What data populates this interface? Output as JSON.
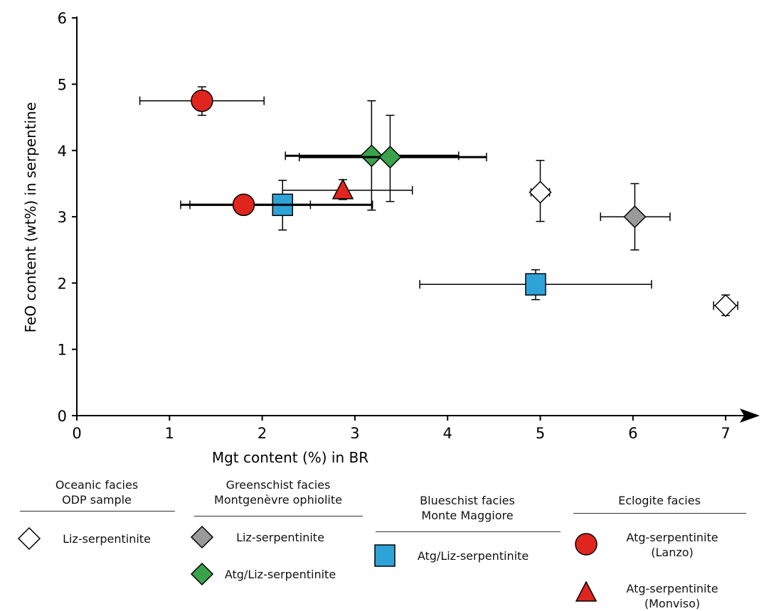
{
  "chart_data": {
    "type": "scatter",
    "xlabel": "Mgt content (%) in BR",
    "ylabel": "FeO content (wt%) in serpentine",
    "xlim": [
      0,
      7.3
    ],
    "ylim": [
      0,
      6
    ],
    "xticks": [
      "0",
      "1",
      "2",
      "3",
      "4",
      "5",
      "6",
      "7"
    ],
    "yticks": [
      "0",
      "1",
      "2",
      "3",
      "4",
      "5",
      "6"
    ],
    "grid": false,
    "series": [
      {
        "name": "Liz-serpentinite",
        "group": "Oceanic facies ODP sample",
        "marker": "diamond",
        "color": "#ffffff",
        "points": [
          {
            "x": 5.0,
            "y": 3.37,
            "xerr": [
              4.9,
              5.1
            ],
            "yerr": [
              2.93,
              3.85
            ],
            "thick": false
          },
          {
            "x": 7.0,
            "y": 1.66,
            "xerr": [
              6.87,
              7.13
            ],
            "yerr": [
              1.51,
              1.82
            ],
            "thick": false
          }
        ]
      },
      {
        "name": "Liz-serpentinite",
        "group": "Greenschist facies Montgenèvre ophiolite",
        "marker": "diamond",
        "color": "#9a9a9a",
        "points": [
          {
            "x": 6.02,
            "y": 3.0,
            "xerr": [
              5.65,
              6.4
            ],
            "yerr": [
              2.5,
              3.5
            ],
            "thick": false
          }
        ]
      },
      {
        "name": "Atg/Liz-serpentinite",
        "group": "Greenschist facies Montgenèvre ophiolite",
        "marker": "diamond",
        "color": "#3aa24b",
        "points": [
          {
            "x": 3.18,
            "y": 3.92,
            "xerr": [
              2.25,
              4.12
            ],
            "yerr": [
              3.1,
              4.75
            ],
            "thick": true
          },
          {
            "x": 3.38,
            "y": 3.9,
            "xerr": [
              2.4,
              4.42
            ],
            "yerr": [
              3.23,
              4.53
            ],
            "thick": true
          }
        ]
      },
      {
        "name": "Atg/Liz-serpentinite",
        "group": "Blueschist facies Monte Maggiore",
        "marker": "square",
        "color": "#2ea3d8",
        "points": [
          {
            "x": 2.22,
            "y": 3.18,
            "xerr": [
              1.22,
              3.19
            ],
            "yerr": [
              2.8,
              3.55
            ],
            "thick": true
          },
          {
            "x": 4.95,
            "y": 1.98,
            "xerr": [
              3.7,
              6.2
            ],
            "yerr": [
              1.75,
              2.2
            ],
            "thick": false
          }
        ]
      },
      {
        "name": "Atg-serpentinite (Lanzo)",
        "group": "Eclogite facies",
        "marker": "circle",
        "color": "#e0251f",
        "points": [
          {
            "x": 1.35,
            "y": 4.75,
            "xerr": [
              0.68,
              2.02
            ],
            "yerr": [
              4.53,
              4.96
            ],
            "thick": false
          },
          {
            "x": 1.8,
            "y": 3.18,
            "xerr": [
              1.12,
              2.52
            ],
            "yerr": null,
            "thick": true
          }
        ]
      },
      {
        "name": "Atg-serpentinite (Monviso)",
        "group": "Eclogite facies",
        "marker": "triangle",
        "color": "#e0251f",
        "points": [
          {
            "x": 2.87,
            "y": 3.4,
            "xerr": [
              2.22,
              3.62
            ],
            "yerr": [
              3.26,
              3.56
            ],
            "thick": false
          }
        ]
      }
    ],
    "legend": {
      "placement": "bottom",
      "groups": [
        {
          "title": "Oceanic facies\nODP sample",
          "items": [
            {
              "label": "Liz-serpentinite",
              "marker": "diamond",
              "color": "#ffffff"
            }
          ]
        },
        {
          "title": "Greenschist facies\nMontgenèvre ophiolite",
          "items": [
            {
              "label": "Liz-serpentinite",
              "marker": "diamond",
              "color": "#9a9a9a"
            },
            {
              "label": "Atg/Liz-serpentinite",
              "marker": "diamond",
              "color": "#3aa24b"
            }
          ]
        },
        {
          "title": "Blueschist facies\nMonte Maggiore",
          "items": [
            {
              "label": "Atg/Liz-serpentinite",
              "marker": "square",
              "color": "#2ea3d8"
            }
          ]
        },
        {
          "title": "Eclogite facies",
          "items": [
            {
              "label": "Atg-serpentinite\n(Lanzo)",
              "marker": "circle",
              "color": "#e0251f"
            },
            {
              "label": "Atg-serpentinite\n(Monviso)",
              "marker": "triangle",
              "color": "#e0251f"
            }
          ]
        }
      ]
    }
  }
}
